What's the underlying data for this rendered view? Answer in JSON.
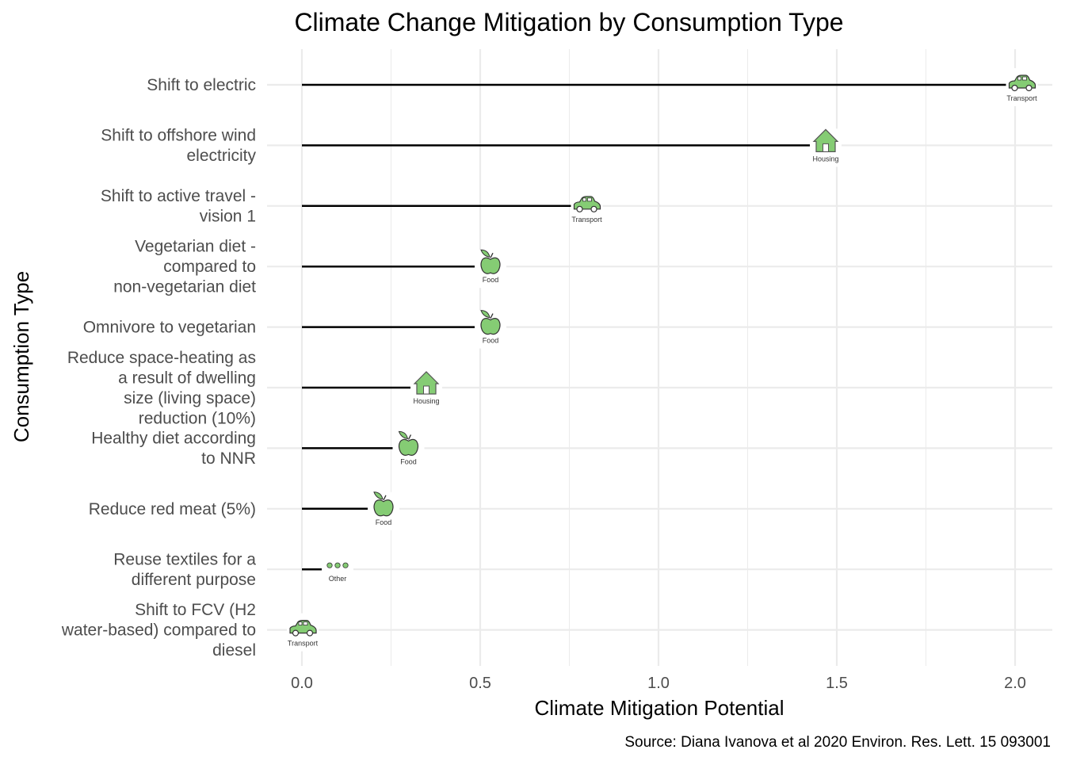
{
  "chart_data": {
    "type": "lollipop",
    "title": "Climate Change Mitigation by Consumption Type",
    "xlabel": "Climate Mitigation Potential",
    "ylabel": "Consumption Type",
    "caption": "Source: Diana Ivanova et al 2020 Environ. Res. Lett. 15 093001",
    "xlim": [
      -0.1,
      2.1
    ],
    "xticks": [
      0.0,
      0.5,
      1.0,
      1.5,
      2.0
    ],
    "xtick_labels": [
      "0.0",
      "0.5",
      "1.0",
      "1.5",
      "2.0"
    ],
    "grid": true,
    "categories": [
      [
        "Shift to electric"
      ],
      [
        "Shift to offshore wind",
        "electricity"
      ],
      [
        "Shift to active travel -",
        "vision 1"
      ],
      [
        "Vegetarian diet -",
        "compared to",
        "non-vegetarian diet"
      ],
      [
        "Omnivore to vegetarian"
      ],
      [
        "Reduce space-heating as",
        "a result of dwelling",
        "size (living space)",
        "reduction (10%)"
      ],
      [
        "Healthy diet according",
        "to NNR"
      ],
      [
        "Reduce red meat (5%)"
      ],
      [
        "Reuse textiles for a",
        "different purpose"
      ],
      [
        "Shift to FCV (H2",
        "water-based) compared to",
        "diesel"
      ]
    ],
    "values": [
      2.01,
      1.46,
      0.79,
      0.52,
      0.52,
      0.34,
      0.29,
      0.22,
      0.06,
      0.0
    ],
    "groups": [
      "Transport",
      "Housing",
      "Transport",
      "Food",
      "Food",
      "Housing",
      "Food",
      "Food",
      "Other",
      "Transport"
    ],
    "icons": {
      "Transport": "car-icon",
      "Housing": "house-icon",
      "Food": "apple-icon",
      "Other": "dots-icon"
    },
    "icon_color": "#85cc74"
  }
}
